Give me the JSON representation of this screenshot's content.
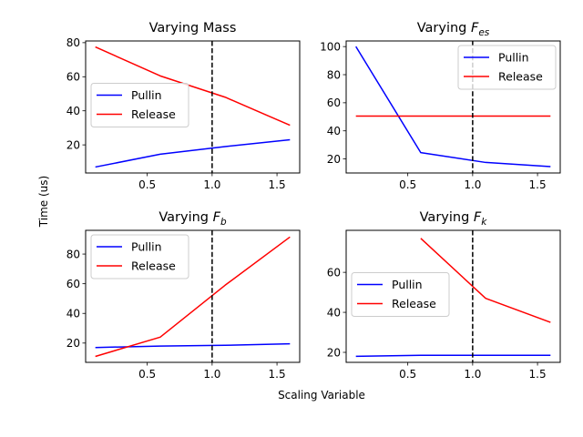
{
  "figure": {
    "ylabel": "Time (us)",
    "xlabel": "Scaling Variable"
  },
  "colors": {
    "pullin": "#0000ff",
    "release": "#ff0000",
    "refline": "#000000"
  },
  "chart_data": [
    {
      "type": "line",
      "title": "Varying Mass",
      "title_base": "Varying Mass",
      "title_sub": "",
      "xlim": [
        0.025,
        1.675
      ],
      "ylim": [
        3.5,
        81.0
      ],
      "xticks": [
        0.5,
        1.0,
        1.5
      ],
      "xtick_labels": [
        "0.5",
        "1.0",
        "1.5"
      ],
      "yticks": [
        20,
        40,
        60,
        80
      ],
      "ytick_labels": [
        "20",
        "40",
        "60",
        "80"
      ],
      "grid": false,
      "legend": "center-left",
      "vline_x": 1.0,
      "series": [
        {
          "name": "Pullin",
          "color": "#0000ff",
          "x": [
            0.1,
            0.6,
            1.1,
            1.6
          ],
          "y": [
            7,
            14.5,
            19,
            23
          ]
        },
        {
          "name": "Release",
          "color": "#ff0000",
          "x": [
            0.1,
            0.6,
            1.1,
            1.6
          ],
          "y": [
            77.5,
            60.5,
            48,
            31.5
          ]
        }
      ]
    },
    {
      "type": "line",
      "title": "Varying F_es",
      "title_base": "Varying ",
      "title_sub": "es",
      "xlim": [
        0.025,
        1.675
      ],
      "ylim": [
        10.0,
        104.0
      ],
      "xticks": [
        0.5,
        1.0,
        1.5
      ],
      "xtick_labels": [
        "0.5",
        "1.0",
        "1.5"
      ],
      "yticks": [
        20,
        40,
        60,
        80,
        100
      ],
      "ytick_labels": [
        "20",
        "40",
        "60",
        "80",
        "100"
      ],
      "grid": false,
      "legend": "upper-right",
      "vline_x": 1.0,
      "series": [
        {
          "name": "Pullin",
          "color": "#0000ff",
          "x": [
            0.1,
            0.6,
            1.1,
            1.6
          ],
          "y": [
            100,
            24.5,
            17.5,
            14.5
          ]
        },
        {
          "name": "Release",
          "color": "#ff0000",
          "x": [
            0.1,
            0.6,
            1.1,
            1.6
          ],
          "y": [
            50.5,
            50.5,
            50.5,
            50.5
          ]
        }
      ]
    },
    {
      "type": "line",
      "title": "Varying F_b",
      "title_base": "Varying ",
      "title_sub": "b",
      "xlim": [
        0.025,
        1.675
      ],
      "ylim": [
        7.0,
        96.0
      ],
      "xticks": [
        0.5,
        1.0,
        1.5
      ],
      "xtick_labels": [
        "0.5",
        "1.0",
        "1.5"
      ],
      "yticks": [
        20,
        40,
        60,
        80
      ],
      "ytick_labels": [
        "20",
        "40",
        "60",
        "80"
      ],
      "grid": false,
      "legend": "upper-left",
      "vline_x": 1.0,
      "series": [
        {
          "name": "Pullin",
          "color": "#0000ff",
          "x": [
            0.1,
            0.6,
            1.1,
            1.6
          ],
          "y": [
            17,
            18,
            18.5,
            19.5
          ]
        },
        {
          "name": "Release",
          "color": "#ff0000",
          "x": [
            0.1,
            0.6,
            1.1,
            1.6
          ],
          "y": [
            11,
            24,
            59,
            91.5
          ]
        }
      ]
    },
    {
      "type": "line",
      "title": "Varying F_k",
      "title_base": "Varying ",
      "title_sub": "k",
      "xlim": [
        0.025,
        1.675
      ],
      "ylim": [
        15.0,
        81.0
      ],
      "xticks": [
        0.5,
        1.0,
        1.5
      ],
      "xtick_labels": [
        "0.5",
        "1.0",
        "1.5"
      ],
      "yticks": [
        20,
        40,
        60
      ],
      "ytick_labels": [
        "20",
        "40",
        "60"
      ],
      "grid": false,
      "legend": "center-left",
      "vline_x": 1.0,
      "series": [
        {
          "name": "Pullin",
          "color": "#0000ff",
          "x": [
            0.1,
            0.6,
            1.1,
            1.6
          ],
          "y": [
            18,
            18.5,
            18.5,
            18.5
          ]
        },
        {
          "name": "Release",
          "color": "#ff0000",
          "x": [
            0.6,
            1.1,
            1.6
          ],
          "y": [
            77,
            47,
            35
          ]
        }
      ]
    }
  ]
}
